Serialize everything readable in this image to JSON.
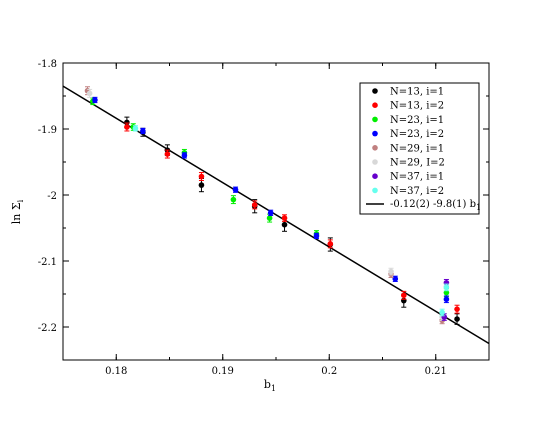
{
  "chart_data": {
    "type": "scatter",
    "xlabel": "b",
    "xlabel_sub": "1",
    "ylabel": "ln Σ",
    "ylabel_sub": "i",
    "xlim": [
      0.175,
      0.215
    ],
    "ylim": [
      -2.25,
      -1.8
    ],
    "xticks": [
      0.18,
      0.19,
      0.2,
      0.21
    ],
    "xtick_labels": [
      "0.18",
      "0.19",
      "0.2",
      "0.21"
    ],
    "yticks": [
      -2.2,
      -2.1,
      -2.0,
      -1.9,
      -1.8
    ],
    "ytick_labels": [
      "-2.2",
      "-2.1",
      "-2",
      "-1.9",
      "-1.8"
    ],
    "grid": false,
    "legend_position": "top-right",
    "fit_line": {
      "label": "-0.12(2) -9.8(1) b",
      "label_sub": "1",
      "x": [
        0.175,
        0.215
      ],
      "y": [
        -1.835,
        -2.225
      ]
    },
    "series": [
      {
        "name": "N=13, i=1",
        "color": "#000000",
        "points": [
          [
            0.181,
            -1.89,
            0.008
          ],
          [
            0.1825,
            -1.905,
            0.006
          ],
          [
            0.1848,
            -1.932,
            0.008
          ],
          [
            0.188,
            -1.985,
            0.01
          ],
          [
            0.193,
            -2.017,
            0.01
          ],
          [
            0.1958,
            -2.045,
            0.01
          ],
          [
            0.2001,
            -2.075,
            0.01
          ],
          [
            0.207,
            -2.16,
            0.01
          ],
          [
            0.212,
            -2.188,
            0.008
          ]
        ]
      },
      {
        "name": "N=13, i=2",
        "color": "#ff0000",
        "points": [
          [
            0.181,
            -1.897,
            0.006
          ],
          [
            0.1848,
            -1.938,
            0.006
          ],
          [
            0.188,
            -1.972,
            0.006
          ],
          [
            0.193,
            -2.015,
            0.006
          ],
          [
            0.1958,
            -2.035,
            0.005
          ],
          [
            0.2001,
            -2.074,
            0.006
          ],
          [
            0.207,
            -2.152,
            0.006
          ],
          [
            0.212,
            -2.173,
            0.006
          ]
        ]
      },
      {
        "name": "N=23, i=1",
        "color": "#00ee00",
        "points": [
          [
            0.1778,
            -1.858,
            0.005
          ],
          [
            0.1816,
            -1.897,
            0.005
          ],
          [
            0.1864,
            -1.936,
            0.005
          ],
          [
            0.191,
            -2.007,
            0.006
          ],
          [
            0.1944,
            -2.035,
            0.006
          ],
          [
            0.1988,
            -2.059,
            0.005
          ],
          [
            0.211,
            -2.148,
            0.006
          ]
        ]
      },
      {
        "name": "N=23, i=2",
        "color": "#0000ff",
        "points": [
          [
            0.178,
            -1.856,
            0.004
          ],
          [
            0.1825,
            -1.903,
            0.004
          ],
          [
            0.1864,
            -1.94,
            0.004
          ],
          [
            0.1912,
            -1.992,
            0.004
          ],
          [
            0.1945,
            -2.027,
            0.004
          ],
          [
            0.1988,
            -2.062,
            0.004
          ],
          [
            0.2062,
            -2.127,
            0.004
          ],
          [
            0.211,
            -2.158,
            0.005
          ]
        ]
      },
      {
        "name": "N=29, i=1",
        "color": "#c08080",
        "points": [
          [
            0.1773,
            -1.842,
            0.006
          ],
          [
            0.2058,
            -2.12,
            0.005
          ],
          [
            0.2106,
            -2.19,
            0.005
          ]
        ]
      },
      {
        "name": "N=29, I=2",
        "color": "#d8d8d8",
        "points": [
          [
            0.1775,
            -1.846,
            0.006
          ],
          [
            0.2058,
            -2.116,
            0.005
          ],
          [
            0.2106,
            -2.185,
            0.005
          ]
        ]
      },
      {
        "name": "N=37, i=1",
        "color": "#6600cc",
        "points": [
          [
            0.211,
            -2.133,
            0.005
          ],
          [
            0.2108,
            -2.185,
            0.005
          ]
        ]
      },
      {
        "name": "N=37, i=2",
        "color": "#66ffee",
        "points": [
          [
            0.1818,
            -1.899,
            0.004
          ],
          [
            0.2106,
            -2.178,
            0.005
          ],
          [
            0.211,
            -2.14,
            0.005
          ]
        ]
      }
    ]
  }
}
